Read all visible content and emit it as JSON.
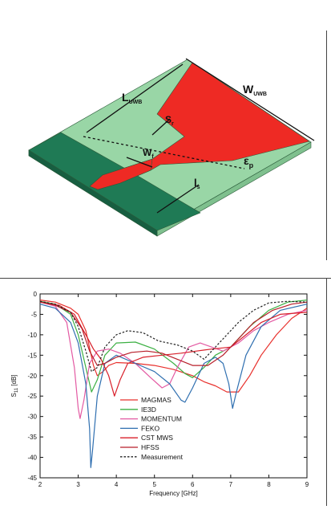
{
  "figure_a": {
    "labels": {
      "l_uwb": "L",
      "l_uwb_sub": "UWB",
      "w_uwb": "W",
      "w_uwb_sub": "UWB",
      "s_r": "S",
      "s_r_sub": "r",
      "w_f": "W",
      "w_f_sub": "f",
      "eps_p": "ε",
      "eps_p_sub": "p",
      "l_s": "l",
      "l_s_sub": "s"
    },
    "colors": {
      "substrate": "#99d6a6",
      "ground": "#1f7a55",
      "patch": "#ee2a24"
    }
  },
  "chart_data": {
    "type": "line",
    "xlabel": "Frequency [GHz]",
    "ylabel_main": "S",
    "ylabel_sub": "11",
    "ylabel_unit": " [dB]",
    "xlim": [
      2,
      9
    ],
    "ylim": [
      -45,
      0
    ],
    "x_ticks": [
      "2",
      "3",
      "4",
      "5",
      "6",
      "7",
      "8",
      "9"
    ],
    "y_ticks": [
      "0",
      "-5",
      "-10",
      "-15",
      "-20",
      "-25",
      "-30",
      "-35",
      "-40",
      "-45"
    ],
    "grid": false,
    "legend_position": "lower-left",
    "series": [
      {
        "name": "MAGMAS",
        "color": "#e8302c",
        "dash": false,
        "points": [
          [
            2,
            -1.5
          ],
          [
            2.4,
            -2
          ],
          [
            2.8,
            -3.5
          ],
          [
            3.0,
            -5
          ],
          [
            3.2,
            -9
          ],
          [
            3.4,
            -17.5
          ],
          [
            3.5,
            -20
          ],
          [
            3.65,
            -19
          ],
          [
            3.8,
            -17.5
          ],
          [
            4.0,
            -16.8
          ],
          [
            4.5,
            -17
          ],
          [
            5.0,
            -17.5
          ],
          [
            5.5,
            -18.5
          ],
          [
            6.0,
            -20
          ],
          [
            6.3,
            -21.5
          ],
          [
            6.6,
            -22.5
          ],
          [
            6.9,
            -24
          ],
          [
            7.2,
            -24
          ],
          [
            7.5,
            -20
          ],
          [
            7.8,
            -15
          ],
          [
            8.2,
            -10
          ],
          [
            8.6,
            -6
          ],
          [
            9.0,
            -3.5
          ]
        ]
      },
      {
        "name": "IE3D",
        "color": "#3cb043",
        "dash": false,
        "points": [
          [
            2,
            -1.8
          ],
          [
            2.4,
            -2.5
          ],
          [
            2.8,
            -5
          ],
          [
            3.0,
            -10
          ],
          [
            3.2,
            -18
          ],
          [
            3.35,
            -24
          ],
          [
            3.5,
            -21
          ],
          [
            3.7,
            -15
          ],
          [
            4.0,
            -12
          ],
          [
            4.5,
            -11.8
          ],
          [
            5.0,
            -13.5
          ],
          [
            5.5,
            -17
          ],
          [
            5.8,
            -19.5
          ],
          [
            6.0,
            -20.5
          ],
          [
            6.3,
            -18
          ],
          [
            6.6,
            -15
          ],
          [
            7.0,
            -13
          ],
          [
            7.5,
            -8
          ],
          [
            8.0,
            -4
          ],
          [
            8.5,
            -2
          ],
          [
            9.0,
            -1.5
          ]
        ]
      },
      {
        "name": "MOMENTUM",
        "color": "#e35aa3",
        "dash": false,
        "points": [
          [
            2,
            -2
          ],
          [
            2.4,
            -3
          ],
          [
            2.7,
            -7
          ],
          [
            2.9,
            -18
          ],
          [
            3.0,
            -28
          ],
          [
            3.05,
            -30.5
          ],
          [
            3.15,
            -26
          ],
          [
            3.3,
            -17
          ],
          [
            3.5,
            -14
          ],
          [
            3.8,
            -13.5
          ],
          [
            4.1,
            -14.5
          ],
          [
            4.5,
            -17
          ],
          [
            4.9,
            -20.5
          ],
          [
            5.2,
            -23
          ],
          [
            5.4,
            -22
          ],
          [
            5.6,
            -18
          ],
          [
            5.9,
            -13
          ],
          [
            6.2,
            -12
          ],
          [
            6.5,
            -13
          ],
          [
            6.8,
            -14
          ],
          [
            7.2,
            -12
          ],
          [
            7.6,
            -9
          ],
          [
            8.0,
            -7
          ],
          [
            8.5,
            -5
          ],
          [
            9.0,
            -4
          ]
        ]
      },
      {
        "name": "FEKO",
        "color": "#2f6fb0",
        "dash": false,
        "points": [
          [
            2,
            -2.5
          ],
          [
            2.4,
            -3.5
          ],
          [
            2.8,
            -7
          ],
          [
            3.0,
            -12
          ],
          [
            3.2,
            -22
          ],
          [
            3.3,
            -33
          ],
          [
            3.33,
            -42.5
          ],
          [
            3.38,
            -38
          ],
          [
            3.5,
            -25
          ],
          [
            3.7,
            -17
          ],
          [
            4.0,
            -15
          ],
          [
            4.5,
            -17
          ],
          [
            5.0,
            -19
          ],
          [
            5.4,
            -22
          ],
          [
            5.7,
            -26
          ],
          [
            5.8,
            -26.5
          ],
          [
            6.0,
            -23
          ],
          [
            6.3,
            -17
          ],
          [
            6.6,
            -15.5
          ],
          [
            6.8,
            -17
          ],
          [
            6.95,
            -22
          ],
          [
            7.05,
            -28
          ],
          [
            7.15,
            -24
          ],
          [
            7.4,
            -15
          ],
          [
            7.8,
            -8
          ],
          [
            8.3,
            -4
          ],
          [
            9.0,
            -2.5
          ]
        ]
      },
      {
        "name": "CST MWS",
        "color": "#d81f2a",
        "dash": false,
        "points": [
          [
            2,
            -2
          ],
          [
            2.5,
            -2.8
          ],
          [
            2.9,
            -5
          ],
          [
            3.2,
            -10
          ],
          [
            3.4,
            -13.5
          ],
          [
            3.6,
            -16
          ],
          [
            3.8,
            -20
          ],
          [
            3.95,
            -25
          ],
          [
            4.1,
            -21
          ],
          [
            4.3,
            -17
          ],
          [
            4.7,
            -15.5
          ],
          [
            5.2,
            -15
          ],
          [
            5.7,
            -14.5
          ],
          [
            6.1,
            -14
          ],
          [
            6.5,
            -13.5
          ],
          [
            7.0,
            -13
          ],
          [
            7.4,
            -10
          ],
          [
            7.8,
            -7
          ],
          [
            8.3,
            -5
          ],
          [
            9.0,
            -4.5
          ]
        ]
      },
      {
        "name": "HFSS",
        "color": "#b81f2a",
        "dash": false,
        "points": [
          [
            2,
            -2
          ],
          [
            2.4,
            -2.8
          ],
          [
            2.8,
            -4.5
          ],
          [
            3.1,
            -8.5
          ],
          [
            3.3,
            -14
          ],
          [
            3.5,
            -17.5
          ],
          [
            3.7,
            -17
          ],
          [
            4.0,
            -15.5
          ],
          [
            4.4,
            -14.3
          ],
          [
            4.8,
            -14
          ],
          [
            5.2,
            -14.5
          ],
          [
            5.6,
            -16
          ],
          [
            6.0,
            -17.5
          ],
          [
            6.4,
            -17.5
          ],
          [
            6.8,
            -15
          ],
          [
            7.2,
            -11
          ],
          [
            7.6,
            -7
          ],
          [
            8.1,
            -4
          ],
          [
            8.6,
            -2.5
          ],
          [
            9.0,
            -2
          ]
        ]
      },
      {
        "name": "Measurement",
        "color": "#222222",
        "dash": true,
        "points": [
          [
            2,
            -1.8
          ],
          [
            2.4,
            -2.5
          ],
          [
            2.8,
            -4.5
          ],
          [
            3.0,
            -8
          ],
          [
            3.2,
            -14
          ],
          [
            3.35,
            -19
          ],
          [
            3.5,
            -18
          ],
          [
            3.7,
            -13
          ],
          [
            4.0,
            -10
          ],
          [
            4.3,
            -9
          ],
          [
            4.7,
            -9.5
          ],
          [
            5.1,
            -11.5
          ],
          [
            5.6,
            -12.5
          ],
          [
            6.0,
            -14
          ],
          [
            6.3,
            -16
          ],
          [
            6.5,
            -14
          ],
          [
            6.8,
            -11
          ],
          [
            7.2,
            -7
          ],
          [
            7.6,
            -4
          ],
          [
            8.0,
            -2.2
          ],
          [
            8.5,
            -1.8
          ],
          [
            9.0,
            -2
          ]
        ]
      }
    ]
  }
}
